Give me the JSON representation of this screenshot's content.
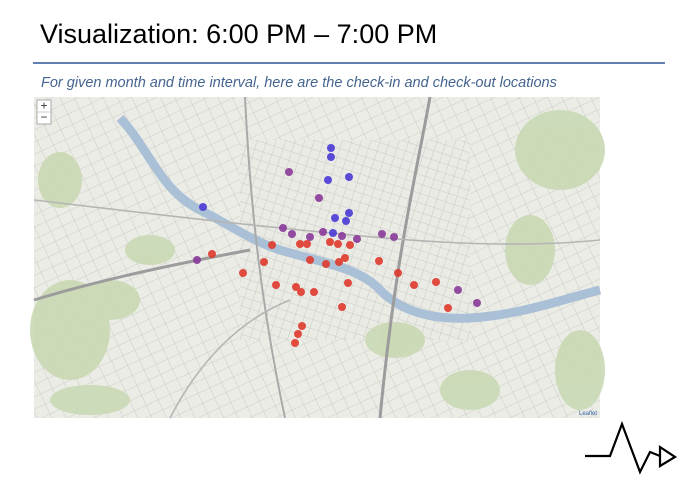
{
  "slide": {
    "title": "Visualization: 6:00 PM – 7:00 PM",
    "subtitle": "For given month and time interval, here are the check-in and check-out locations"
  },
  "map": {
    "zoom_in": "+",
    "zoom_out": "−",
    "attribution": "Leaflet"
  }
}
